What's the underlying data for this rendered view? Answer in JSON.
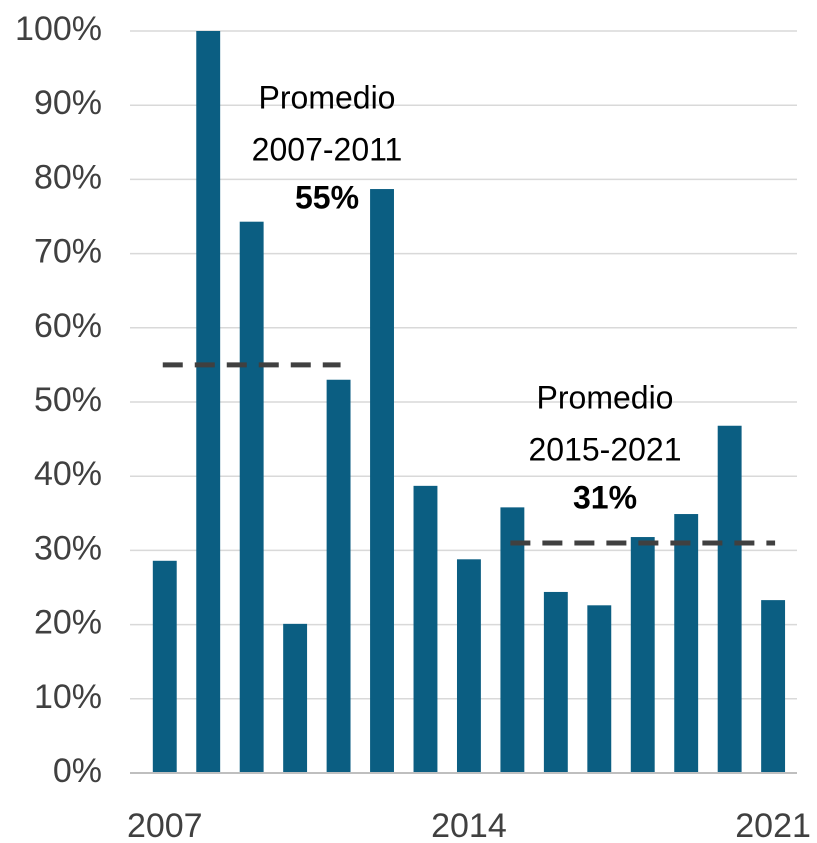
{
  "chart_data": {
    "type": "bar",
    "x": [
      2007,
      2008,
      2009,
      2010,
      2011,
      2012,
      2013,
      2014,
      2015,
      2016,
      2017,
      2018,
      2019,
      2020,
      2021
    ],
    "values": [
      28.6,
      100,
      74.3,
      20.1,
      53.0,
      78.7,
      38.7,
      28.8,
      35.8,
      24.4,
      22.6,
      31.8,
      34.9,
      46.8,
      23.3
    ],
    "color": "#0b5e82",
    "xlim": [
      2006.2,
      2021.55
    ],
    "xticks": [
      2007,
      2014,
      2021
    ],
    "ylim": [
      0,
      100
    ],
    "yticks": [
      {
        "value": 0,
        "label": "0%"
      },
      {
        "value": 10,
        "label": "10%"
      },
      {
        "value": 20,
        "label": "20%"
      },
      {
        "value": 30,
        "label": "30%"
      },
      {
        "value": 40,
        "label": "40%"
      },
      {
        "value": 50,
        "label": "50%"
      },
      {
        "value": 60,
        "label": "60%"
      },
      {
        "value": 70,
        "label": "70%"
      },
      {
        "value": 80,
        "label": "80%"
      },
      {
        "value": 90,
        "label": "90%"
      },
      {
        "value": 100,
        "label": "100%"
      }
    ],
    "grid": true,
    "averages": [
      {
        "lines": [
          "Promedio",
          "2007-2011"
        ],
        "value": 55,
        "value_label": "55%",
        "x": [
          2007,
          2011
        ],
        "color": "#404040"
      },
      {
        "lines": [
          "Promedio",
          "2015-2021"
        ],
        "value": 31,
        "value_label": "31%",
        "x": [
          2015,
          2021
        ],
        "color": "#404040"
      }
    ]
  }
}
